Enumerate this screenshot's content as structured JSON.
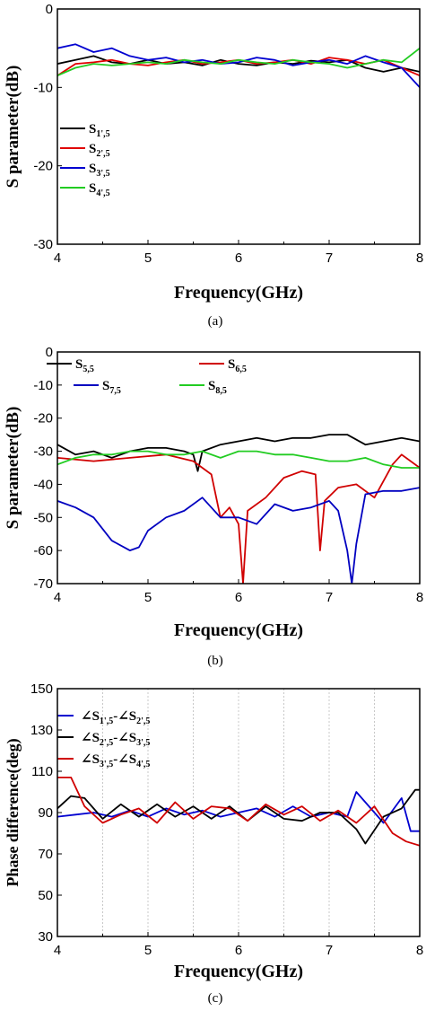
{
  "chart_data": [
    {
      "type": "line",
      "caption": "(a)",
      "xlabel": "Frequency(GHz)",
      "ylabel": "S parameter(dB)",
      "xlim": [
        4,
        8
      ],
      "ylim": [
        -30,
        0
      ],
      "xticks": [
        4,
        5,
        6,
        7,
        8
      ],
      "yticks": [
        0,
        -10,
        -20,
        -30
      ],
      "legend_position": "lower-left",
      "series": [
        {
          "name": "S",
          "sub": "1',5",
          "color": "#000000",
          "x": [
            4.0,
            4.2,
            4.4,
            4.6,
            4.8,
            5.0,
            5.2,
            5.4,
            5.6,
            5.8,
            6.0,
            6.2,
            6.4,
            6.6,
            6.8,
            7.0,
            7.2,
            7.4,
            7.6,
            7.8,
            8.0
          ],
          "y": [
            -7.0,
            -6.5,
            -6.0,
            -6.8,
            -7.0,
            -6.5,
            -7.0,
            -6.8,
            -7.2,
            -6.5,
            -7.0,
            -7.2,
            -6.8,
            -7.0,
            -6.6,
            -6.8,
            -6.5,
            -7.5,
            -8.0,
            -7.5,
            -8.0
          ]
        },
        {
          "name": "S",
          "sub": "2',5",
          "color": "#e00000",
          "x": [
            4.0,
            4.2,
            4.4,
            4.6,
            4.8,
            5.0,
            5.2,
            5.4,
            5.6,
            5.8,
            6.0,
            6.2,
            6.4,
            6.6,
            6.8,
            7.0,
            7.2,
            7.4,
            7.6,
            7.8,
            8.0
          ],
          "y": [
            -8.5,
            -7.0,
            -6.8,
            -6.5,
            -7.0,
            -7.2,
            -6.8,
            -6.5,
            -7.0,
            -6.8,
            -6.5,
            -7.0,
            -6.8,
            -6.5,
            -7.0,
            -6.2,
            -6.5,
            -7.0,
            -6.5,
            -7.5,
            -8.5
          ]
        },
        {
          "name": "S",
          "sub": "3',5",
          "color": "#0000d0",
          "x": [
            4.0,
            4.2,
            4.4,
            4.6,
            4.8,
            5.0,
            5.2,
            5.4,
            5.6,
            5.8,
            6.0,
            6.2,
            6.4,
            6.6,
            6.8,
            7.0,
            7.2,
            7.4,
            7.6,
            7.8,
            8.0
          ],
          "y": [
            -5.0,
            -4.5,
            -5.5,
            -5.0,
            -6.0,
            -6.5,
            -6.2,
            -6.8,
            -6.5,
            -7.0,
            -6.8,
            -6.2,
            -6.5,
            -7.2,
            -6.8,
            -6.5,
            -7.0,
            -6.0,
            -6.8,
            -7.5,
            -10.0
          ]
        },
        {
          "name": "S",
          "sub": "4',5",
          "color": "#22cc22",
          "x": [
            4.0,
            4.2,
            4.4,
            4.6,
            4.8,
            5.0,
            5.2,
            5.4,
            5.6,
            5.8,
            6.0,
            6.2,
            6.4,
            6.6,
            6.8,
            7.0,
            7.2,
            7.4,
            7.6,
            7.8,
            8.0
          ],
          "y": [
            -8.5,
            -7.5,
            -7.0,
            -7.2,
            -7.0,
            -6.8,
            -7.0,
            -6.5,
            -6.8,
            -7.0,
            -6.5,
            -6.8,
            -7.0,
            -6.5,
            -6.8,
            -7.0,
            -7.5,
            -7.0,
            -6.5,
            -6.8,
            -5.0
          ]
        }
      ]
    },
    {
      "type": "line",
      "caption": "(b)",
      "xlabel": "Frequency(GHz)",
      "ylabel": "S parameter(dB)",
      "xlim": [
        4,
        8
      ],
      "ylim": [
        -70,
        0
      ],
      "xticks": [
        4,
        5,
        6,
        7,
        8
      ],
      "yticks": [
        0,
        -10,
        -20,
        -30,
        -40,
        -50,
        -60,
        -70
      ],
      "legend_position": "top-left",
      "series": [
        {
          "name": "S",
          "sub": "5,5",
          "color": "#000000",
          "x": [
            4.0,
            4.2,
            4.4,
            4.6,
            4.8,
            5.0,
            5.2,
            5.4,
            5.5,
            5.55,
            5.6,
            5.8,
            6.0,
            6.2,
            6.4,
            6.6,
            6.8,
            7.0,
            7.2,
            7.4,
            7.6,
            7.8,
            8.0
          ],
          "y": [
            -28,
            -31,
            -30,
            -32,
            -30,
            -29,
            -29,
            -30,
            -31,
            -36,
            -30,
            -28,
            -27,
            -26,
            -27,
            -26,
            -26,
            -25,
            -25,
            -28,
            -27,
            -26,
            -27
          ]
        },
        {
          "name": "S",
          "sub": "6,5",
          "color": "#d00000",
          "x": [
            4.0,
            4.4,
            4.8,
            5.2,
            5.5,
            5.7,
            5.8,
            5.9,
            6.0,
            6.05,
            6.1,
            6.3,
            6.5,
            6.7,
            6.85,
            6.9,
            6.95,
            7.1,
            7.3,
            7.5,
            7.7,
            7.8,
            8.0
          ],
          "y": [
            -32,
            -33,
            -32,
            -31,
            -33,
            -37,
            -50,
            -47,
            -52,
            -70,
            -48,
            -44,
            -38,
            -36,
            -37,
            -60,
            -45,
            -41,
            -40,
            -44,
            -34,
            -31,
            -35
          ]
        },
        {
          "name": "S",
          "sub": "7,5",
          "color": "#0000c0",
          "x": [
            4.0,
            4.2,
            4.4,
            4.6,
            4.8,
            4.9,
            5.0,
            5.2,
            5.4,
            5.6,
            5.8,
            6.0,
            6.2,
            6.4,
            6.6,
            6.8,
            7.0,
            7.1,
            7.2,
            7.25,
            7.3,
            7.4,
            7.6,
            7.8,
            8.0
          ],
          "y": [
            -45,
            -47,
            -50,
            -57,
            -60,
            -59,
            -54,
            -50,
            -48,
            -44,
            -50,
            -50,
            -52,
            -46,
            -48,
            -47,
            -45,
            -48,
            -60,
            -70,
            -58,
            -43,
            -42,
            -42,
            -41
          ]
        },
        {
          "name": "S",
          "sub": "8,5",
          "color": "#22cc22",
          "x": [
            4.0,
            4.2,
            4.4,
            4.6,
            4.8,
            5.0,
            5.2,
            5.4,
            5.6,
            5.8,
            6.0,
            6.2,
            6.4,
            6.6,
            6.8,
            7.0,
            7.2,
            7.4,
            7.6,
            7.8,
            8.0
          ],
          "y": [
            -34,
            -32,
            -31,
            -31,
            -30,
            -30,
            -31,
            -31,
            -30,
            -32,
            -30,
            -30,
            -31,
            -31,
            -32,
            -33,
            -33,
            -32,
            -34,
            -35,
            -35
          ]
        }
      ]
    },
    {
      "type": "line",
      "caption": "(c)",
      "xlabel": "Frequency(GHz)",
      "ylabel": "Phase difference(deg)",
      "xlim": [
        4,
        8
      ],
      "ylim": [
        30,
        150
      ],
      "xticks": [
        4,
        5,
        6,
        7,
        8
      ],
      "yticks": [
        150,
        130,
        110,
        90,
        70,
        50,
        30
      ],
      "grid": true,
      "legend_position": "top-left",
      "series": [
        {
          "name": "∠S",
          "sub": "1',5",
          "name2": "-∠S",
          "sub2": "2',5",
          "color": "#0000d0",
          "x": [
            4.0,
            4.2,
            4.4,
            4.6,
            4.8,
            5.0,
            5.2,
            5.4,
            5.6,
            5.8,
            6.0,
            6.2,
            6.4,
            6.6,
            6.8,
            7.0,
            7.2,
            7.3,
            7.4,
            7.6,
            7.8,
            7.9,
            8.0
          ],
          "y": [
            88,
            89,
            90,
            88,
            91,
            88,
            92,
            89,
            91,
            88,
            90,
            92,
            88,
            93,
            88,
            90,
            88,
            100,
            95,
            85,
            97,
            81,
            81
          ]
        },
        {
          "name": "∠S",
          "sub": "2',5",
          "name2": "-∠S",
          "sub2": "3',5",
          "color": "#000000",
          "x": [
            4.0,
            4.15,
            4.3,
            4.5,
            4.7,
            4.9,
            5.1,
            5.3,
            5.5,
            5.7,
            5.9,
            6.1,
            6.3,
            6.5,
            6.7,
            6.9,
            7.1,
            7.3,
            7.4,
            7.6,
            7.8,
            7.95,
            8.0
          ],
          "y": [
            92,
            98,
            97,
            87,
            94,
            88,
            94,
            88,
            93,
            87,
            93,
            86,
            93,
            87,
            86,
            90,
            90,
            82,
            75,
            88,
            92,
            101,
            101
          ]
        },
        {
          "name": "∠S",
          "sub": "3',5",
          "name2": "-∠S",
          "sub2": "4',5",
          "color": "#d00000",
          "x": [
            4.0,
            4.15,
            4.3,
            4.5,
            4.7,
            4.9,
            5.1,
            5.3,
            5.5,
            5.7,
            5.9,
            6.1,
            6.3,
            6.5,
            6.7,
            6.9,
            7.1,
            7.3,
            7.5,
            7.7,
            7.85,
            8.0
          ],
          "y": [
            107,
            107,
            93,
            85,
            89,
            92,
            85,
            95,
            87,
            93,
            92,
            86,
            94,
            89,
            93,
            86,
            91,
            85,
            93,
            80,
            76,
            74
          ]
        }
      ]
    }
  ]
}
